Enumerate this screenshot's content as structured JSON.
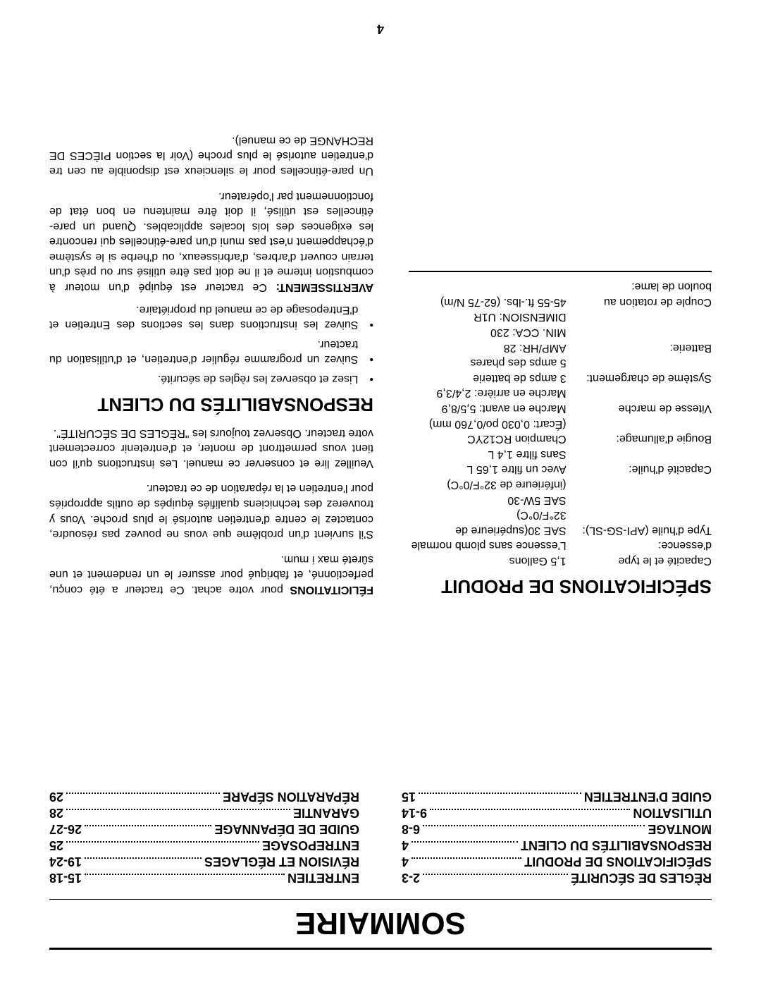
{
  "page_number": "4",
  "sommaire": {
    "title": "SOMMAIRE",
    "left": [
      {
        "label": "RÈGLES DE SÉCURITÉ",
        "page": "2-3"
      },
      {
        "label": "SPÉCIFICATIONS DE  PRODUIT",
        "page": "4"
      },
      {
        "label": "RESPONSABILITÉS DU CLIENT",
        "page": "4"
      },
      {
        "label": "MONTAGE",
        "page": "6-8"
      },
      {
        "label": "UTILISATION",
        "page": "9-14"
      },
      {
        "label": "GUIDE D'ENTRETIEN",
        "page": "15"
      }
    ],
    "right": [
      {
        "label": "ENTRETIEN",
        "page": "15-18"
      },
      {
        "label": "RÉVISION ET RÉGLAGES",
        "page": "19-24"
      },
      {
        "label": "ENTREPOSAGE",
        "page": "25"
      },
      {
        "label": "GUIDE DE DÉPANNAGE",
        "page": "26-27"
      },
      {
        "label": "GARANTIE",
        "page": "28"
      },
      {
        "label": "RÉPARATION SÉPARE",
        "page": "29"
      }
    ]
  },
  "specs": {
    "title": "SPÉCIFICATIONS DE PRODUIT",
    "rows": [
      {
        "label": "Capacité et le type d'essence:",
        "value": "1,5 Gallons\nL'essence sans plomb normale"
      },
      {
        "label": "Type d'huile (API-SG-SL):",
        "value": "SAE 30(supérieure de 32°F/0°C)\nSAE 5W-30\n(inférieure de 32°F/0°C)"
      },
      {
        "label": "Capacité d'huile:",
        "value": "Avec un filtre   1,65 L\nSans filtre        1,4 L"
      },
      {
        "label": "Bougie d'allumage:",
        "value": "Champion RC12YC\n(Écart: 0,030 po/0,760 mm)"
      },
      {
        "label": "Vitesse de marche",
        "value": "Marche en avant:   5,5/8,9\nMarche en arrière:  2,4/3,9"
      },
      {
        "label": "Système de chargement:",
        "value": "3 amps de batterie\n5 amps des phares"
      },
      {
        "label": "Batterie:",
        "value": "AMP/HR:       28\nMIN. CCA:     230\nDIMENSION:  U1R"
      },
      {
        "label": "Couple de rotation au boulon de lame:",
        "value": "45-55 ft.-lbs. (62-75 N/m)"
      }
    ]
  },
  "right": {
    "felicitations_label": "FÉLICITATIONS",
    "felicitations_text": " pour votre achat. Ce tracteur a été conçu, perfectionné, et fabriqué pour assurer le un rendement et une sûreté max i mum.",
    "para2": "S'il survient d'un problème que vous ne pouvez pas résoudre, contactez le centre d'entretien autorisé le plus proche.  Vous y trouverez des techniciens qualifiés équipés de outils appropriés pour l'entretien et la réparation de ce tracteur.",
    "para3": "Veuillez lire et conserver ce manuel.  Les instructions qu'il con tient vous permettront de monter, et d'entretenir correctement votre tracteur.  Observez toujours les \"RÈGLES DE SÉCURITÉ\".",
    "resp_title": "RESPONSABILITÉS DU CLIENT",
    "bullets": [
      "Lisez et observez les règles de sécurité.",
      "Suivez un programme régulier d'entretien, et d'utilisation du tracteur.",
      "Suivez les instructions dans les sections des Entretien et d'Entreposage de ce manuel du propriétaire."
    ],
    "avert_label": "AVERTISSEMENT:",
    "avert_text": " Ce tracteur est équipé d'un moteur à combustion interne et il ne doit pas être utilisé sur ou près d'un terrain couvert d'arbres, d'arbrisseaux, ou d'herbe si le système d'échappement n'est pas muni d'un pare-étincelles qui rencontre les exigences des lois locales applicables.  Quand un pare-étincelles est utilisé, il doit être maintenu en bon état de fonctionnement par l'opérateur.",
    "para_last": "Un pare-étincelles pour le silencieux est disponible au cen tre d'entretien autorisé le plus proche (Voir la section PIÈCES DE RECHANGE de ce manuel)."
  }
}
